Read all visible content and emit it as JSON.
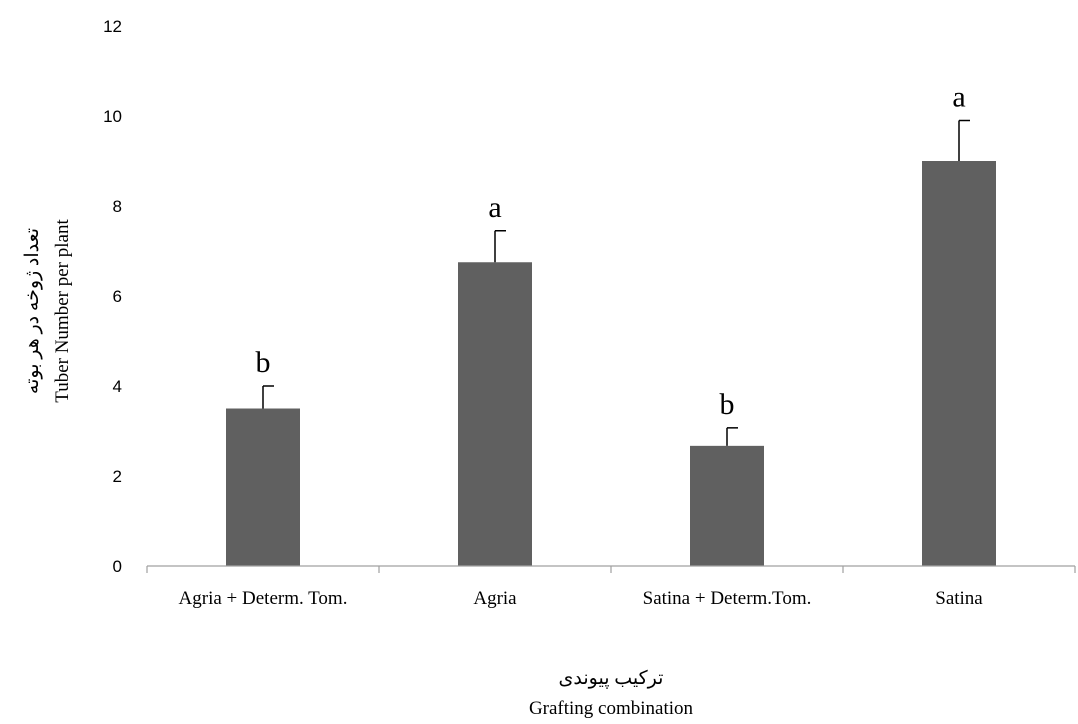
{
  "chart_data": {
    "type": "bar",
    "categories": [
      "Agria + Determ. Tom.",
      "Agria",
      "Satina + Determ.Tom.",
      "Satina"
    ],
    "values": [
      3.5,
      6.75,
      2.67,
      9.0
    ],
    "error_bars": [
      0.5,
      0.7,
      0.4,
      0.9
    ],
    "significance_letters": [
      "b",
      "a",
      "b",
      "a"
    ],
    "title": "",
    "xlabel": "ترکیب پیوندی",
    "xlabel_en": "Grafting combination",
    "ylabel": "تعداد ژوخه در هر بوته",
    "ylabel_en": "Tuber Number per plant",
    "ylim": [
      0,
      12
    ],
    "yticks": [
      0,
      2,
      4,
      6,
      8,
      10,
      12
    ],
    "grid": false,
    "legend": "none",
    "bar_color": "#606060"
  }
}
